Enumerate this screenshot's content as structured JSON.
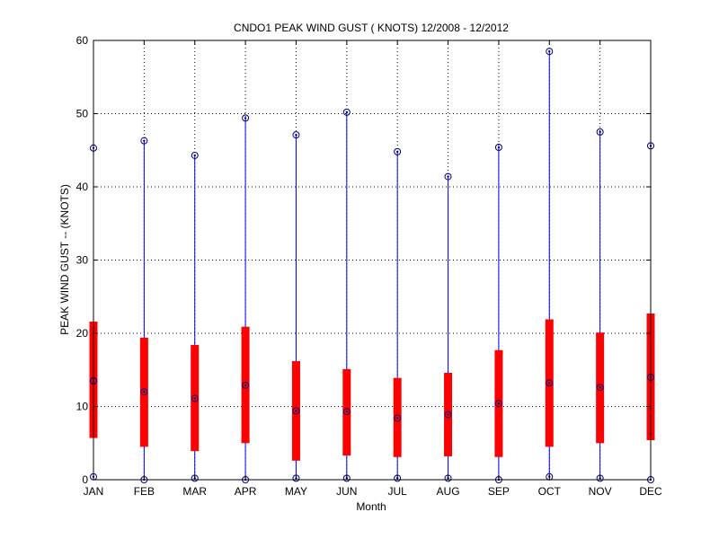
{
  "chart_data": {
    "type": "boxplot",
    "title": "CNDO1  PEAK WIND GUST ( KNOTS) 12/2008 - 12/2012",
    "xlabel": "Month",
    "ylabel": "PEAK WIND GUST -- (KNOTS)",
    "categories": [
      "JAN",
      "FEB",
      "MAR",
      "APR",
      "MAY",
      "JUN",
      "JUL",
      "AUG",
      "SEP",
      "OCT",
      "NOV",
      "DEC"
    ],
    "ylim": [
      0,
      60
    ],
    "yticks": [
      0,
      10,
      20,
      30,
      40,
      50,
      60
    ],
    "grid": true,
    "series": [
      {
        "min": 0.4,
        "q1": 5.7,
        "median": 13.5,
        "q3": 21.6,
        "max": 45.3
      },
      {
        "min": 0.0,
        "q1": 4.5,
        "median": 12.0,
        "q3": 19.4,
        "max": 46.3
      },
      {
        "min": 0.2,
        "q1": 3.9,
        "median": 11.1,
        "q3": 18.4,
        "max": 44.3
      },
      {
        "min": 0.0,
        "q1": 5.0,
        "median": 12.9,
        "q3": 20.9,
        "max": 49.4
      },
      {
        "min": 0.2,
        "q1": 2.6,
        "median": 9.4,
        "q3": 16.2,
        "max": 47.1
      },
      {
        "min": 0.2,
        "q1": 3.3,
        "median": 9.3,
        "q3": 15.1,
        "max": 50.2
      },
      {
        "min": 0.2,
        "q1": 3.1,
        "median": 8.4,
        "q3": 13.9,
        "max": 44.8
      },
      {
        "min": 0.2,
        "q1": 3.2,
        "median": 8.9,
        "q3": 14.6,
        "max": 41.4
      },
      {
        "min": 0.0,
        "q1": 3.1,
        "median": 10.4,
        "q3": 17.7,
        "max": 45.4
      },
      {
        "min": 0.4,
        "q1": 4.5,
        "median": 13.2,
        "q3": 21.9,
        "max": 58.5
      },
      {
        "min": 0.2,
        "q1": 5.0,
        "median": 12.6,
        "q3": 20.1,
        "max": 47.5
      },
      {
        "min": 0.0,
        "q1": 5.4,
        "median": 14.0,
        "q3": 22.7,
        "max": 45.6
      }
    ],
    "colors": {
      "whisker": "#0000ff",
      "box": "#ff0000",
      "marker": "#000080",
      "grid": "#000000"
    }
  }
}
